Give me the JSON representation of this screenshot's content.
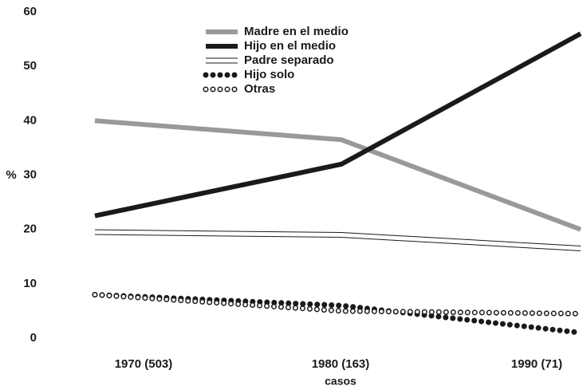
{
  "chart_data": {
    "type": "line",
    "xlabel": "casos",
    "ylabel": "%",
    "categories": [
      "1970 (503)",
      "1980 (163)",
      "1990 (71)"
    ],
    "series": [
      {
        "name": "Madre en el medio",
        "color": "#999999",
        "style": "solid",
        "values": [
          40,
          36.5,
          20
        ]
      },
      {
        "name": "Hijo en el medio",
        "color": "#1a1a1a",
        "style": "solid",
        "values": [
          22.5,
          32,
          56
        ]
      },
      {
        "name": "Padre separado",
        "color": "#1a1a1a",
        "style": "hollow",
        "values": [
          19.5,
          19,
          16.5
        ]
      },
      {
        "name": "Hijo solo",
        "color": "#1a1a1a",
        "style": "dots",
        "values": [
          8,
          6,
          1
        ]
      },
      {
        "name": "Otras",
        "color": "#1a1a1a",
        "style": "rings",
        "values": [
          8,
          5,
          4.5
        ]
      }
    ],
    "ylim": [
      0,
      60
    ],
    "yticks": [
      0,
      10,
      20,
      30,
      40,
      50,
      60
    ]
  }
}
